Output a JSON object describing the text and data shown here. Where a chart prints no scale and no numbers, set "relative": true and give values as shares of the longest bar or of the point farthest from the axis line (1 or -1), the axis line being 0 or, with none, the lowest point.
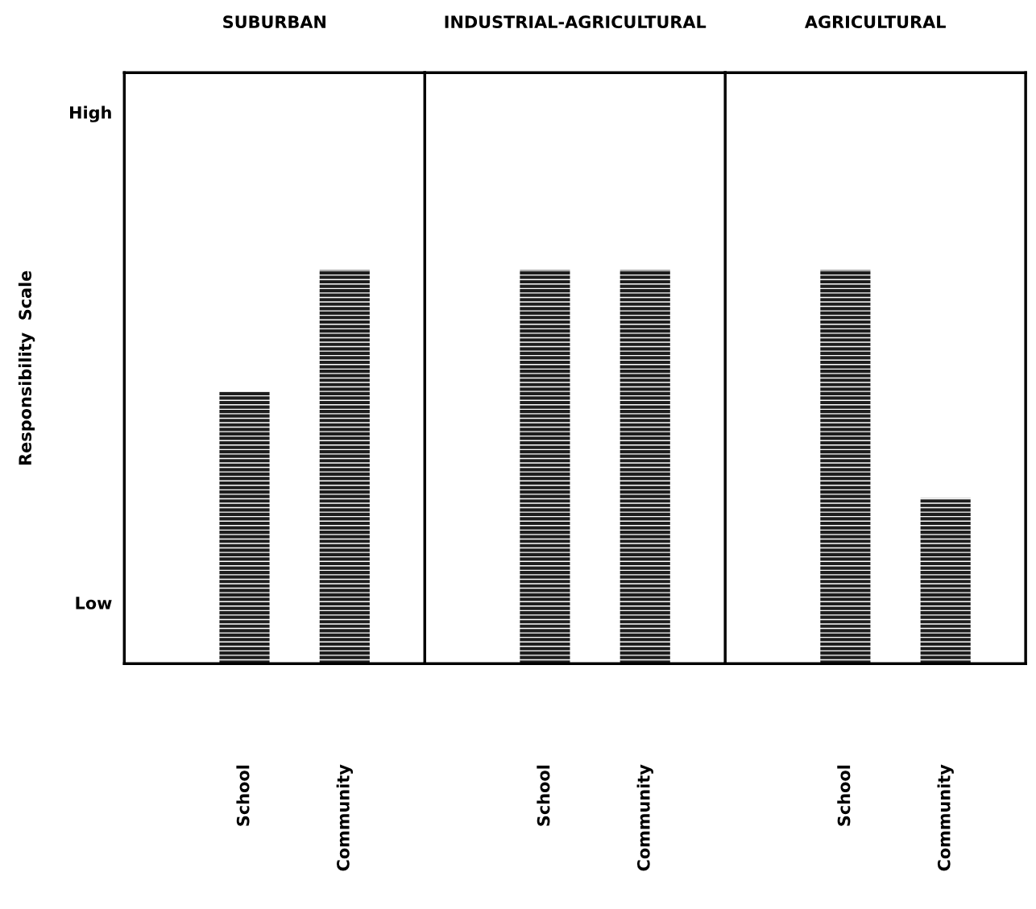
{
  "chart_data": [
    {
      "type": "bar",
      "title": "SUBURBAN",
      "ylabel": "Responsibility  Scale",
      "categories": [
        "School",
        "Community"
      ],
      "values": [
        0.69,
        1
      ],
      "relative": true,
      "color": "#1e1e1e",
      "annotations": [
        "High",
        "Low"
      ]
    },
    {
      "type": "bar",
      "title": "INDUSTRIAL-AGRICULTURAL",
      "categories": [
        "School",
        "Community"
      ],
      "values": [
        1,
        1
      ],
      "relative": true,
      "color": "#1e1e1e"
    },
    {
      "type": "bar",
      "title": "AGRICULTURAL",
      "categories": [
        "School",
        "Community"
      ],
      "values": [
        1,
        0.42
      ],
      "relative": true,
      "color": "#1e1e1e"
    }
  ]
}
